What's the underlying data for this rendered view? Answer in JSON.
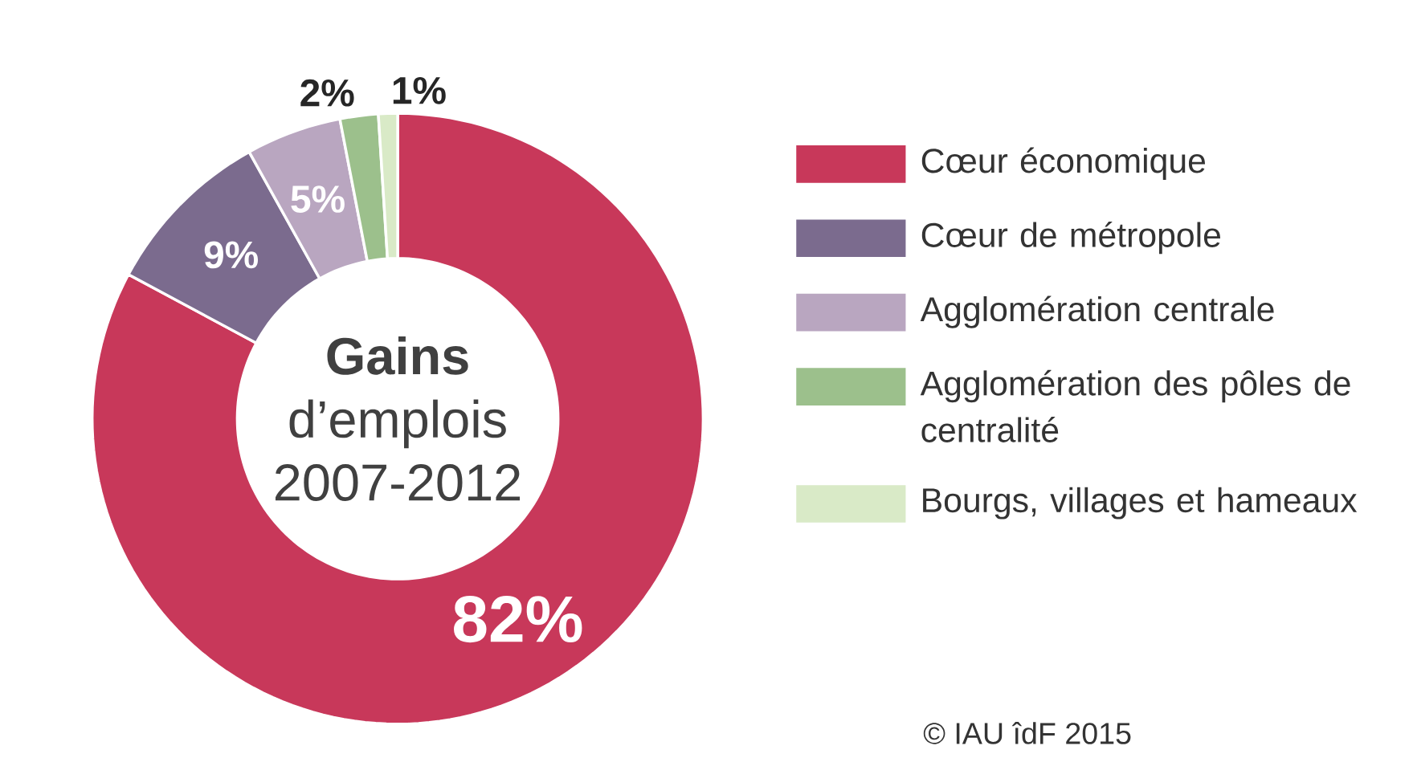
{
  "chart_data": {
    "type": "donut",
    "title": "**Gains** d’emplois 2007-2012",
    "categories": [
      "Cœur économique",
      "Cœur de métropole",
      "Agglomération centrale",
      "Agglomération des pôles de centralité",
      "Bourgs, villages et hameaux"
    ],
    "values": [
      82,
      9,
      5,
      2,
      1
    ],
    "value_labels": [
      "82%",
      "9%",
      "5%",
      "2%",
      "1%"
    ],
    "colors": [
      "#c8385a",
      "#7b6b8e",
      "#b9a6c0",
      "#9cc08c",
      "#d9eac7"
    ],
    "legend": "right",
    "annotations": [
      "© IAU îdF 2015"
    ]
  }
}
